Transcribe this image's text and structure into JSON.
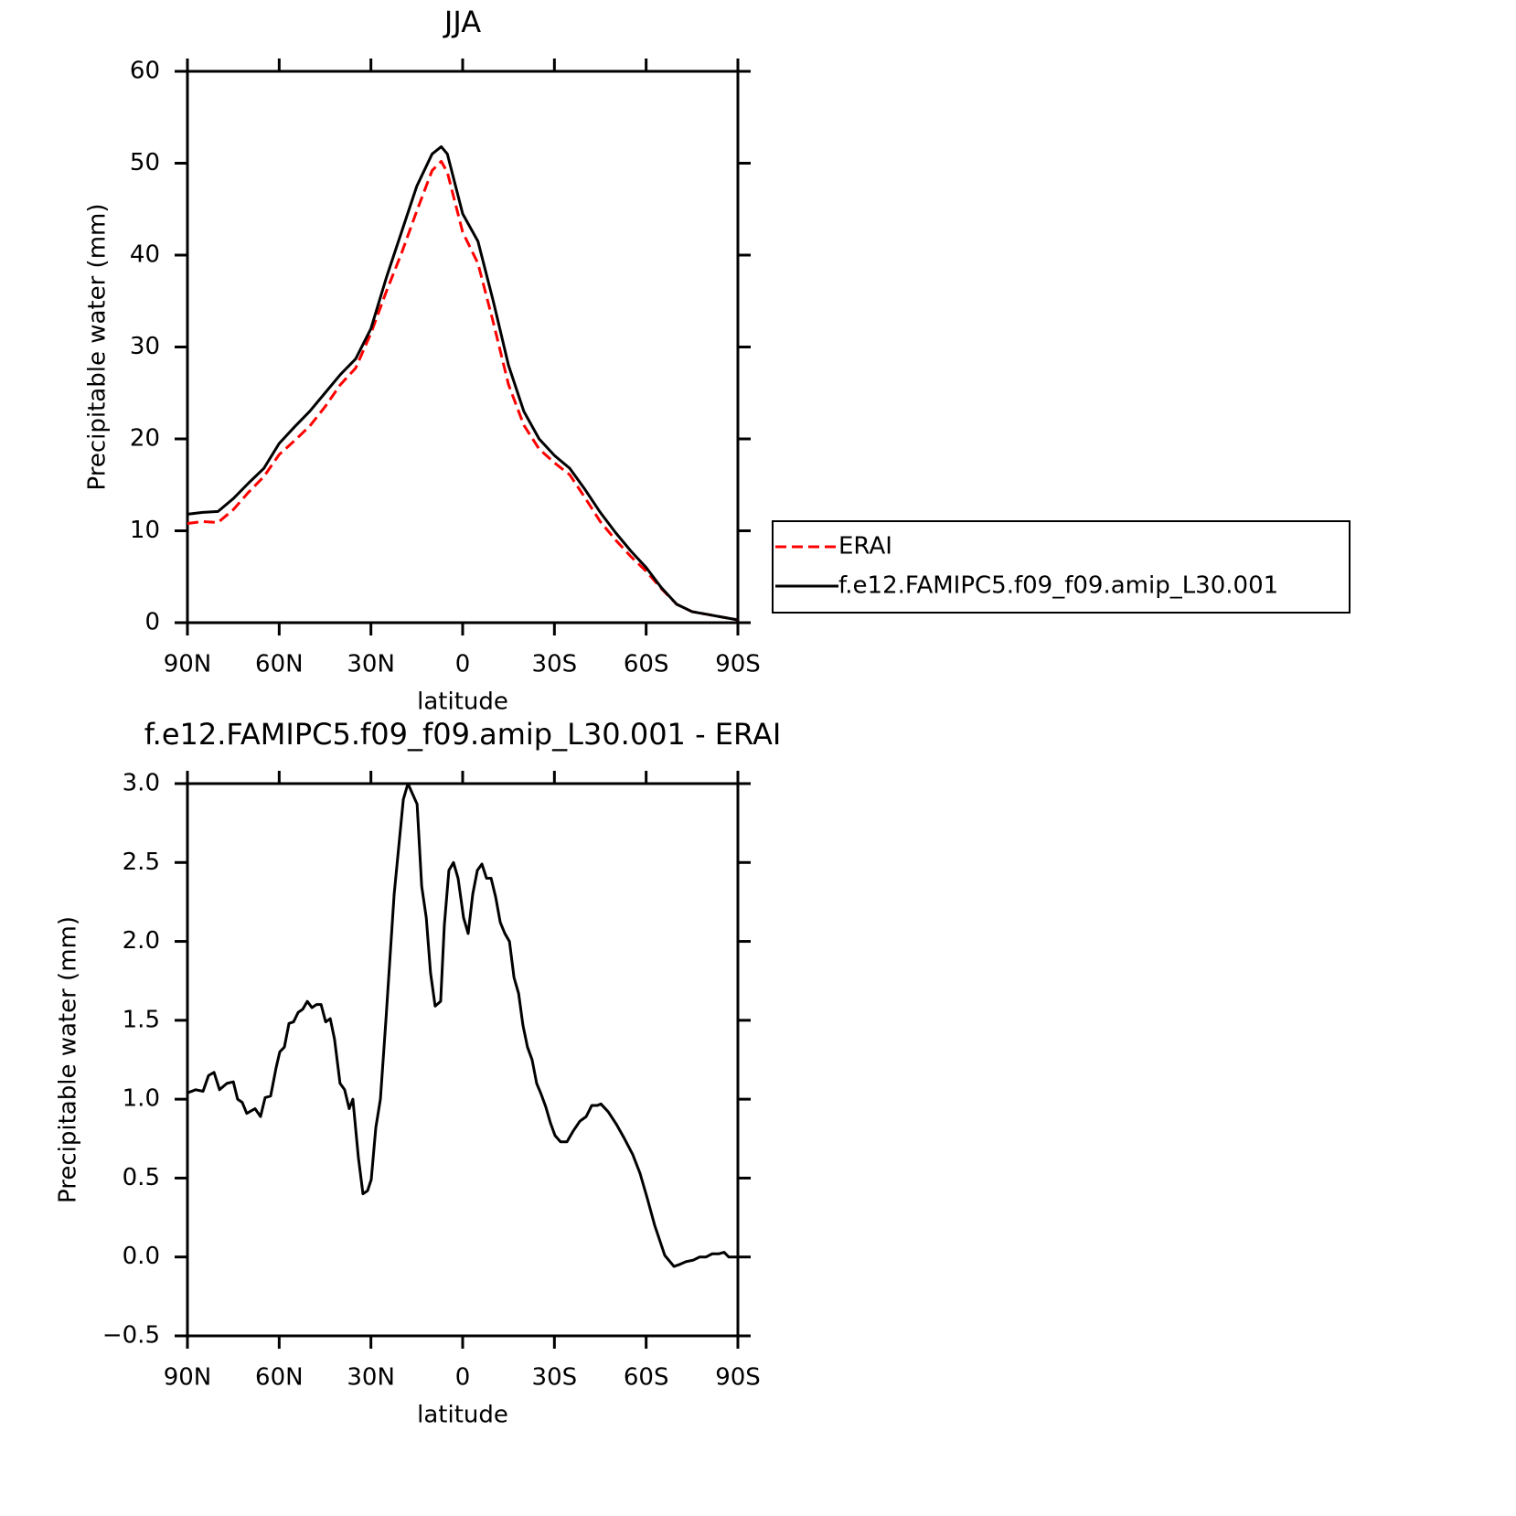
{
  "chart_data": [
    {
      "type": "line",
      "title": "JJA",
      "x_label": "latitude",
      "y_label": "Precipitable water (mm)",
      "x": [
        90,
        85,
        80,
        75,
        70,
        65,
        60,
        55,
        50,
        45,
        40,
        35,
        30,
        25,
        20,
        15,
        10,
        7,
        5,
        0,
        -5,
        -10,
        -15,
        -20,
        -25,
        -30,
        -35,
        -40,
        -45,
        -50,
        -55,
        -60,
        -65,
        -70,
        -75,
        -80,
        -85,
        -90
      ],
      "series": [
        {
          "name": "ERAI",
          "color": "#ff0000",
          "dashed": true,
          "values": [
            10.8,
            11.0,
            10.9,
            12.3,
            14.2,
            15.9,
            18.3,
            19.8,
            21.4,
            23.5,
            25.9,
            27.7,
            31.5,
            36.0,
            40.2,
            44.8,
            49.2,
            50.2,
            49.0,
            42.5,
            39.1,
            32.7,
            25.9,
            21.5,
            18.9,
            17.4,
            16.1,
            13.6,
            11.0,
            9.0,
            7.2,
            5.6,
            3.7,
            2.0,
            1.2,
            0.9,
            0.6,
            0.3
          ]
        },
        {
          "name": "f.e12.FAMIPC5.f09_f09.amip_L30.001",
          "color": "#000000",
          "dashed": false,
          "values": [
            11.8,
            12.0,
            12.1,
            13.5,
            15.2,
            16.8,
            19.5,
            21.3,
            23.0,
            25.0,
            27.0,
            28.7,
            32.0,
            37.5,
            42.5,
            47.5,
            51.0,
            51.8,
            51.0,
            44.5,
            41.5,
            35.0,
            28.0,
            23.0,
            20.0,
            18.2,
            16.8,
            14.5,
            12.0,
            9.8,
            7.8,
            6.0,
            3.8,
            2.0,
            1.2,
            0.9,
            0.6,
            0.3
          ]
        }
      ],
      "xlim": [
        90,
        -90
      ],
      "xticks": [
        {
          "value": 90,
          "label": "90N"
        },
        {
          "value": 60,
          "label": "60N"
        },
        {
          "value": 30,
          "label": "30N"
        },
        0,
        {
          "value": -30,
          "label": "30S"
        },
        {
          "value": -60,
          "label": "60S"
        },
        {
          "value": -90,
          "label": "90S"
        }
      ],
      "ylim": [
        0,
        60
      ],
      "yticks": [
        0,
        10,
        20,
        30,
        40,
        50,
        60
      ],
      "legend": "outside-right"
    },
    {
      "type": "line",
      "title": "f.e12.FAMIPC5.f09_f09.amip_L30.001 - ERAI",
      "x_label": "latitude",
      "y_label": "Precipitable water (mm)",
      "x": [
        90,
        87.3,
        84.9,
        83.1,
        81.3,
        79.5,
        77.1,
        75.0,
        73.6,
        72.1,
        70.6,
        67.9,
        66.1,
        64.6,
        62.8,
        61.0,
        59.8,
        58.3,
        56.8,
        55.3,
        53.8,
        52.3,
        50.8,
        49.3,
        47.8,
        46.3,
        44.8,
        43.3,
        41.9,
        40.1,
        38.6,
        37.1,
        35.9,
        34.1,
        32.6,
        31.1,
        29.9,
        28.4,
        26.9,
        25.1,
        22.4,
        19.4,
        17.9,
        14.9,
        13.4,
        11.9,
        10.5,
        9.0,
        7.2,
        6.0,
        4.5,
        3.0,
        1.5,
        -0.3,
        -1.8,
        -3.3,
        -4.8,
        -6.3,
        -7.8,
        -9.3,
        -10.8,
        -12.3,
        -13.8,
        -15.3,
        -16.8,
        -18.3,
        -19.7,
        -21.2,
        -22.7,
        -24.2,
        -25.7,
        -27.2,
        -28.7,
        -30.2,
        -32.0,
        -34.1,
        -36.2,
        -38.3,
        -40.4,
        -42.2,
        -44.0,
        -45.2,
        -47.6,
        -50.3,
        -52.9,
        -55.6,
        -58.0,
        -60.4,
        -62.8,
        -66.1,
        -69.1,
        -70.6,
        -73.0,
        -75.4,
        -77.5,
        -79.6,
        -81.6,
        -83.7,
        -85.5,
        -87.0,
        -90
      ],
      "series": [
        {
          "color": "#000000",
          "values": [
            1.04,
            1.06,
            1.05,
            1.15,
            1.17,
            1.06,
            1.1,
            1.11,
            1.0,
            0.98,
            0.91,
            0.94,
            0.89,
            1.01,
            1.02,
            1.2,
            1.3,
            1.33,
            1.48,
            1.49,
            1.55,
            1.57,
            1.62,
            1.58,
            1.6,
            1.6,
            1.49,
            1.51,
            1.38,
            1.1,
            1.06,
            0.94,
            1.0,
            0.63,
            0.4,
            0.42,
            0.49,
            0.82,
            1.0,
            1.5,
            2.3,
            2.9,
            3.0,
            2.87,
            2.35,
            2.15,
            1.8,
            1.59,
            1.62,
            2.1,
            2.45,
            2.5,
            2.4,
            2.15,
            2.05,
            2.3,
            2.45,
            2.49,
            2.4,
            2.4,
            2.28,
            2.12,
            2.05,
            2.0,
            1.77,
            1.67,
            1.47,
            1.33,
            1.25,
            1.1,
            1.03,
            0.95,
            0.85,
            0.77,
            0.73,
            0.73,
            0.8,
            0.86,
            0.89,
            0.96,
            0.96,
            0.97,
            0.92,
            0.84,
            0.75,
            0.65,
            0.53,
            0.37,
            0.2,
            0.01,
            -0.06,
            -0.05,
            -0.03,
            -0.02,
            0.0,
            0.0,
            0.02,
            0.02,
            0.03,
            0.0,
            0.0
          ]
        }
      ],
      "xlim": [
        90,
        -90
      ],
      "xticks": [
        {
          "value": 90,
          "label": "90N"
        },
        {
          "value": 60,
          "label": "60N"
        },
        {
          "value": 30,
          "label": "30N"
        },
        0,
        {
          "value": -30,
          "label": "30S"
        },
        {
          "value": -60,
          "label": "60S"
        },
        {
          "value": -90,
          "label": "90S"
        }
      ],
      "ylim": [
        -0.5,
        3.0
      ],
      "yticks": [
        {
          "value": -0.5,
          "label": "−0.5"
        },
        {
          "value": 0,
          "label": "0.0"
        },
        0.5,
        {
          "value": 1,
          "label": "1.0"
        },
        1.5,
        {
          "value": 2,
          "label": "2.0"
        },
        2.5,
        {
          "value": 3,
          "label": "3.0"
        }
      ]
    }
  ]
}
